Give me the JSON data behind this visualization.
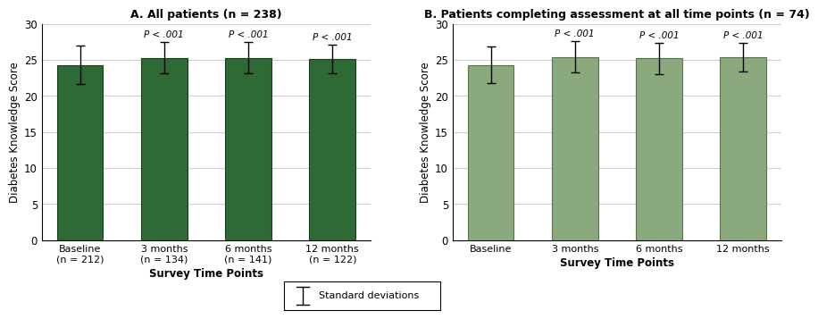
{
  "panel_A": {
    "title": "A. All patients (n = 238)",
    "categories": [
      "Baseline\n(n = 212)",
      "3 months\n(n = 134)",
      "6 months\n(n = 141)",
      "12 months\n(n = 122)"
    ],
    "values": [
      24.3,
      25.3,
      25.3,
      25.1
    ],
    "errors": [
      2.7,
      2.2,
      2.2,
      2.0
    ],
    "pvalues": [
      null,
      "P < .001",
      "P < .001",
      "P < .001"
    ],
    "bar_color": "#2d6a35",
    "bar_edge_color": "#1a3d1f"
  },
  "panel_B": {
    "title": "B. Patients completing assessment at all time points (n = 74)",
    "categories": [
      "Baseline",
      "3 months",
      "6 months",
      "12 months"
    ],
    "values": [
      24.3,
      25.4,
      25.2,
      25.4
    ],
    "errors": [
      2.5,
      2.2,
      2.2,
      2.0
    ],
    "pvalues": [
      null,
      "P < .001",
      "P < .001",
      "P < .001"
    ],
    "bar_color": "#8aaa7d",
    "bar_edge_color": "#5a7050"
  },
  "ylabel": "Diabetes Knowledge Score",
  "xlabel": "Survey Time Points",
  "ylim": [
    0,
    30
  ],
  "yticks": [
    0,
    5,
    10,
    15,
    20,
    25,
    30
  ],
  "legend_label": "Standard deviations",
  "background_color": "#ffffff",
  "grid_color": "#cccccc",
  "figsize": [
    9.2,
    3.56
  ],
  "dpi": 100
}
